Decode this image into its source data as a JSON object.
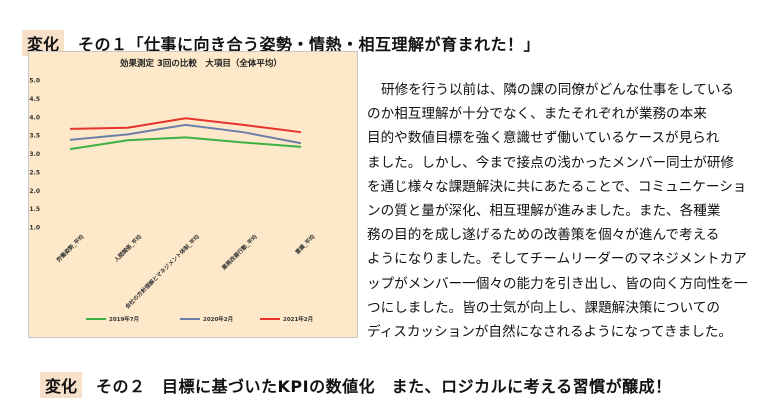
{
  "section1": {
    "tag": "変化",
    "title": "その１「仕事に向き合う姿勢・情熱・相互理解が育まれた！」"
  },
  "section2": {
    "tag": "変化",
    "title": "その２　目標に基づいたKPIの数値化　また、ロジカルに考える習慣が醸成！"
  },
  "paragraph_lines": [
    "研修を行う以前は、隣の課の同僚がどんな仕事をしている",
    "のか相互理解が十分でなく、またそれぞれが業務の本来",
    "目的や数値目標を強く意識せず働いているケースが見られ",
    "ました。しかし、今まで接点の浅かったメンバー同士が研修",
    "を通じ様々な課題解決に共にあたることで、コミュニケーショ",
    "ンの質と量が深化、相互理解が進みました。また、各種業",
    "務の目的を成し遂げるための改善策を個々が進んで考える",
    "ようになりました。そしてチームリーダーのマネジメントカア",
    "ップがメンバー一個々の能力を引き出し、皆の向く方向性を一",
    "つにしました。皆の士気が向上し、課題解決策についての",
    "ディスカッションが自然になされるようになってきました。"
  ],
  "chart_data": {
    "type": "line",
    "title": "効果測定 3回の比較　大項目（全体平均）",
    "categories": [
      "労働姿勢_平均",
      "人間関係_平均",
      "会社の方針理解とマネジメント体制_平均",
      "業務改善行動_平均",
      "意識_平均"
    ],
    "ylim": [
      1.0,
      5.0
    ],
    "yticks": [
      "1.0",
      "1.5",
      "2.0",
      "2.5",
      "3.0",
      "3.5",
      "4.0",
      "4.5",
      "5.0"
    ],
    "grid": false,
    "legend_position": "bottom",
    "background": "#fde9c9",
    "series": [
      {
        "name": "2019年7月",
        "color": "#3cb043",
        "values": [
          3.12,
          3.36,
          3.44,
          3.3,
          3.18
        ]
      },
      {
        "name": "2020年2月",
        "color": "#6c7fa8",
        "values": [
          3.37,
          3.52,
          3.78,
          3.58,
          3.28
        ]
      },
      {
        "name": "2021年2月",
        "color": "#e8322d",
        "values": [
          3.67,
          3.7,
          3.96,
          3.78,
          3.58
        ]
      }
    ]
  }
}
